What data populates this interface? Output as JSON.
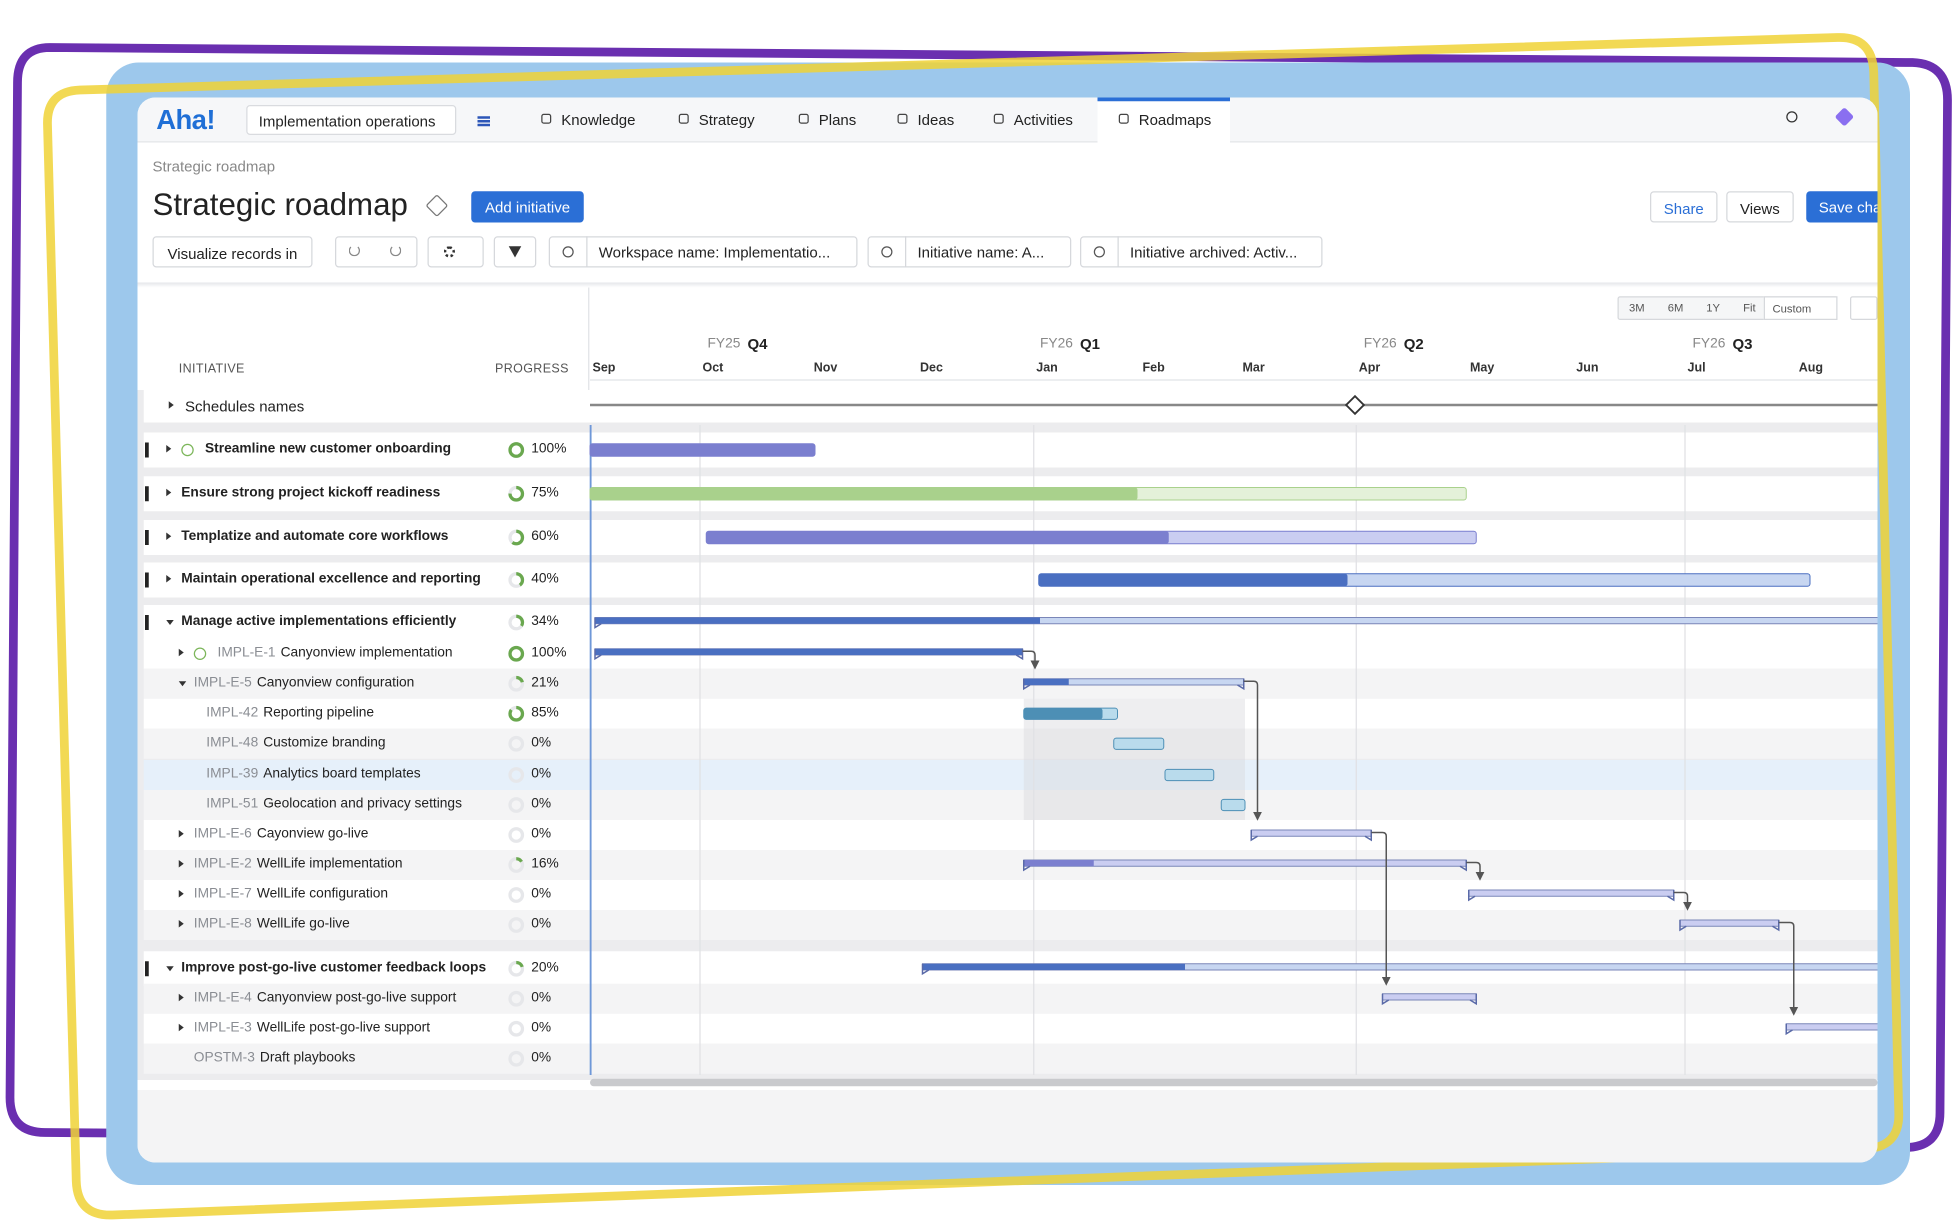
{
  "nav": {
    "logo": "Aha!",
    "workspace": "Implementation operations",
    "tabs": [
      "Knowledge",
      "Strategy",
      "Plans",
      "Ideas",
      "Activities",
      "Roadmaps"
    ]
  },
  "header": {
    "breadcrumb": "Strategic roadmap",
    "title": "Strategic roadmap",
    "add_button": "Add initiative",
    "actions": [
      "Share",
      "Views",
      "Save cha"
    ]
  },
  "filters": {
    "visualize": "Visualize records in",
    "chips": [
      "Workspace name: Implementatio...",
      "Initiative name: A...",
      "Initiative archived: Activ..."
    ]
  },
  "zoom": [
    "3M",
    "6M",
    "1Y",
    "Fit",
    "Custom"
  ],
  "timeline": {
    "quarters": [
      {
        "fiscal_year": "FY25",
        "quarter": "Q4"
      },
      {
        "fiscal_year": "FY26",
        "quarter": "Q1"
      },
      {
        "fiscal_year": "FY26",
        "quarter": "Q2"
      },
      {
        "fiscal_year": "FY26",
        "quarter": "Q3"
      }
    ],
    "months": [
      "Sep",
      "Oct",
      "Nov",
      "Dec",
      "Jan",
      "Feb",
      "Mar",
      "Apr",
      "May",
      "Jun",
      "Jul",
      "Aug"
    ]
  },
  "columns": {
    "initiative": "INITIATIVE",
    "progress": "PROGRESS"
  },
  "schedules": "Schedules names",
  "rows": [
    {
      "name": "Streamline new customer onboarding",
      "progress": "100%"
    },
    {
      "name": "Ensure strong project kickoff readiness",
      "progress": "75%"
    },
    {
      "name": "Templatize and automate core workflows",
      "progress": "60%"
    },
    {
      "name": "Maintain operational excellence and reporting",
      "progress": "40%"
    },
    {
      "name": "Manage active implementations efficiently",
      "progress": "34%"
    },
    {
      "id": "IMPL-E-1",
      "name": "Canyonview implementation",
      "progress": "100%"
    },
    {
      "id": "IMPL-E-5",
      "name": "Canyonview configuration",
      "progress": "21%"
    },
    {
      "id": "IMPL-42",
      "name": "Reporting pipeline",
      "progress": "85%"
    },
    {
      "id": "IMPL-48",
      "name": "Customize branding",
      "progress": "0%"
    },
    {
      "id": "IMPL-39",
      "name": "Analytics board templates",
      "progress": "0%"
    },
    {
      "id": "IMPL-51",
      "name": "Geolocation and privacy settings",
      "progress": "0%"
    },
    {
      "id": "IMPL-E-6",
      "name": "Cayonview go-live",
      "progress": "0%"
    },
    {
      "id": "IMPL-E-2",
      "name": "WellLife implementation",
      "progress": "16%"
    },
    {
      "id": "IMPL-E-7",
      "name": "WellLife configuration",
      "progress": "0%"
    },
    {
      "id": "IMPL-E-8",
      "name": "WellLife go-live",
      "progress": "0%"
    },
    {
      "name": "Improve post-go-live customer feedback loops",
      "progress": "20%"
    },
    {
      "id": "IMPL-E-4",
      "name": "Canyonview post-go-live support",
      "progress": "0%"
    },
    {
      "id": "IMPL-E-3",
      "name": "WellLife post-go-live support",
      "progress": "0%"
    },
    {
      "id": "OPSTM-3",
      "name": "Draft playbooks",
      "progress": "0%"
    }
  ]
}
